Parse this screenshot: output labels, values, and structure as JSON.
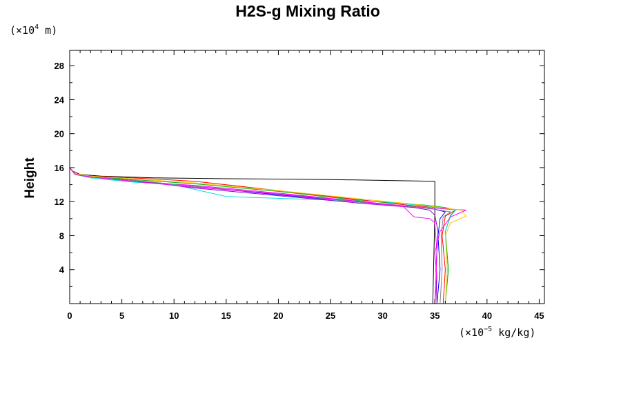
{
  "chart_data": {
    "type": "line",
    "title": "H2S-g Mixing Ratio",
    "ylabel": "Height",
    "xlabel": "",
    "x_units": {
      "prefix": "(×10",
      "exponent": "−5",
      "suffix": " kg/kg)"
    },
    "y_units": {
      "prefix": "(×10",
      "exponent": "4",
      "suffix": " m)"
    },
    "xlim": [
      0,
      45.5
    ],
    "ylim": [
      0,
      29.8
    ],
    "x_ticks": [
      0,
      5,
      10,
      15,
      20,
      25,
      30,
      35,
      40,
      45
    ],
    "y_ticks": [
      4,
      8,
      12,
      16,
      20,
      24,
      28
    ],
    "grid": false,
    "series": [
      {
        "color": "#000000",
        "x": [
          0,
          0,
          0.3,
          1,
          3,
          8,
          15,
          25,
          35,
          35,
          34.8
        ],
        "y": [
          29.8,
          16,
          15.6,
          15.2,
          15,
          14.8,
          14.7,
          14.6,
          14.4,
          10.5,
          0
        ]
      },
      {
        "color": "#ff0000",
        "x": [
          0,
          0,
          0.5,
          2,
          6,
          12,
          20,
          28,
          33,
          35.5,
          37,
          36,
          35.7,
          36,
          35.8
        ],
        "y": [
          29.8,
          16,
          15.3,
          15,
          14.8,
          14.4,
          13.3,
          12.2,
          11.5,
          11.3,
          11,
          10.3,
          8,
          4,
          0
        ]
      },
      {
        "color": "#00b400",
        "x": [
          0,
          0,
          0.5,
          2,
          6,
          12,
          20,
          28,
          34,
          36,
          37,
          36.5,
          36,
          36.3,
          36
        ],
        "y": [
          29.8,
          16,
          15.3,
          15,
          14.6,
          14.1,
          13.2,
          12.1,
          11.6,
          11.3,
          11,
          10.4,
          8.5,
          4,
          0
        ]
      },
      {
        "color": "#0000ff",
        "x": [
          0,
          0,
          0.5,
          2,
          6,
          12,
          20,
          28,
          33,
          35,
          36,
          35.5,
          35.3,
          35.5,
          35.2
        ],
        "y": [
          29.8,
          16,
          15.2,
          14.9,
          14.5,
          13.8,
          12.8,
          11.9,
          11.4,
          11.1,
          10.8,
          10,
          8,
          4,
          0
        ]
      },
      {
        "color": "#00e0e0",
        "x": [
          0,
          0,
          0.5,
          2,
          6,
          10,
          12.5,
          15,
          22,
          30,
          34,
          35.5,
          37,
          36.5,
          36,
          36.2,
          36
        ],
        "y": [
          29.8,
          16,
          15.2,
          14.8,
          14.3,
          14,
          13.3,
          12.6,
          12.3,
          12,
          11.5,
          11.2,
          11,
          10.3,
          8.5,
          4,
          0
        ]
      },
      {
        "color": "#ff00ff",
        "x": [
          0,
          0,
          0.5,
          2,
          6,
          12,
          20,
          28,
          33,
          35.5,
          38,
          36.5,
          35.5,
          35,
          35.2,
          35
        ],
        "y": [
          29.8,
          16,
          15.2,
          14.9,
          14.4,
          13.9,
          13,
          12,
          11.4,
          11.2,
          11,
          10.2,
          8.5,
          6,
          3,
          0
        ]
      },
      {
        "color": "#ffc800",
        "x": [
          0,
          0,
          0.5,
          2,
          6,
          12,
          20,
          28,
          33,
          35.5,
          37.5,
          38,
          36.5,
          36,
          36.2,
          36
        ],
        "y": [
          29.8,
          16,
          15.3,
          15,
          14.7,
          14.2,
          13.3,
          12.3,
          11.7,
          11.3,
          11,
          10.3,
          9.5,
          8,
          4,
          0
        ]
      },
      {
        "color": "#9400d3",
        "x": [
          0,
          0,
          0.5,
          2,
          6,
          12,
          20,
          28,
          33,
          34.5,
          35,
          35.3,
          35.1,
          35.2
        ],
        "y": [
          29.8,
          16,
          15.2,
          14.9,
          14.5,
          13.6,
          12.7,
          11.8,
          11.3,
          11,
          10.4,
          8.5,
          4,
          0
        ]
      },
      {
        "color": "#808080",
        "x": [
          0,
          0,
          0.5,
          2,
          6,
          12,
          20,
          28,
          33,
          35,
          36.5,
          35.8,
          35.6,
          35.7,
          35.5
        ],
        "y": [
          29.8,
          16,
          15.2,
          14.9,
          14.5,
          13.8,
          12.9,
          11.9,
          11.4,
          11.1,
          10.8,
          10.2,
          8,
          4,
          0
        ]
      },
      {
        "color": "#ff00ff",
        "x": [
          0,
          0,
          0.5,
          2,
          6,
          12,
          20,
          28,
          32,
          33,
          34.5,
          35,
          35.2,
          35
        ],
        "y": [
          29.8,
          16,
          15.2,
          14.9,
          14.4,
          13.7,
          12.9,
          12,
          11.4,
          10.2,
          10,
          9.5,
          6,
          0
        ]
      }
    ]
  }
}
